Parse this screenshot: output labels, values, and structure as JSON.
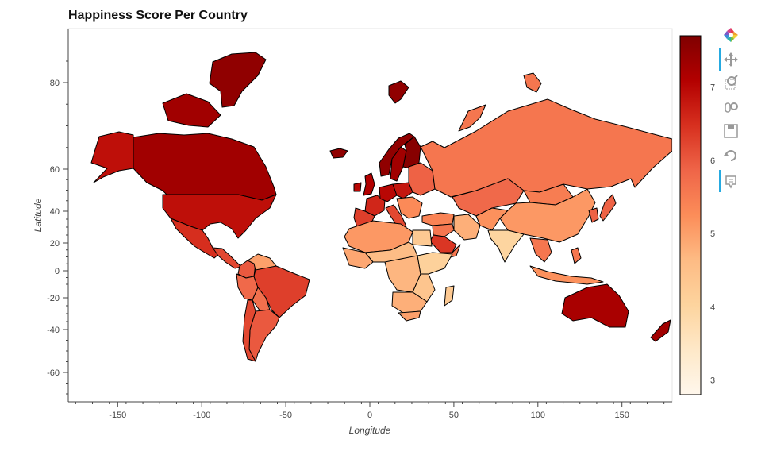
{
  "title": "Happiness Score Per Country",
  "x_axis": {
    "label": "Longitude",
    "range": [
      -180,
      180
    ],
    "ticks": [
      -150,
      -100,
      -50,
      0,
      50,
      100,
      150
    ]
  },
  "y_axis": {
    "label": "Latitude",
    "range": [
      -75,
      91
    ],
    "ticks": [
      80,
      60,
      40,
      20,
      0,
      -20,
      -40,
      -60
    ]
  },
  "colorbar": {
    "palette": "OrRd",
    "range": [
      2.8,
      7.7
    ],
    "ticks": [
      7,
      6,
      5,
      4,
      3
    ],
    "colors": [
      "#fff7ec",
      "#fee8c8",
      "#fdd49e",
      "#fdbb84",
      "#fc8d59",
      "#ef6548",
      "#d7301f",
      "#b30000",
      "#7f0000"
    ]
  },
  "toolbar": {
    "items": [
      "bokeh-logo-icon",
      "pan-icon",
      "box-zoom-icon",
      "wheel-zoom-icon",
      "save-icon",
      "reset-icon",
      "hover-icon"
    ]
  },
  "chart_data": {
    "type": "choropleth",
    "value_name": "Happiness Score",
    "regions": [
      {
        "name": "Canada",
        "value": 7.3
      },
      {
        "name": "Alaska",
        "value": 6.9
      },
      {
        "name": "Greenland",
        "value": 7.5
      },
      {
        "name": "United States",
        "value": 6.9
      },
      {
        "name": "Mexico",
        "value": 6.5
      },
      {
        "name": "Central America",
        "value": 6.2
      },
      {
        "name": "Colombia",
        "value": 6.0
      },
      {
        "name": "Venezuela",
        "value": 5.0
      },
      {
        "name": "Peru",
        "value": 5.8
      },
      {
        "name": "Brazil",
        "value": 6.3
      },
      {
        "name": "Bolivia",
        "value": 5.7
      },
      {
        "name": "Argentina",
        "value": 6.0
      },
      {
        "name": "Chile",
        "value": 6.2
      },
      {
        "name": "Iceland",
        "value": 7.5
      },
      {
        "name": "Norway",
        "value": 7.5
      },
      {
        "name": "Sweden",
        "value": 7.3
      },
      {
        "name": "Finland",
        "value": 7.6
      },
      {
        "name": "United Kingdom",
        "value": 7.1
      },
      {
        "name": "Ireland",
        "value": 7.0
      },
      {
        "name": "France",
        "value": 6.6
      },
      {
        "name": "Spain",
        "value": 6.3
      },
      {
        "name": "Germany",
        "value": 7.0
      },
      {
        "name": "Central Europe",
        "value": 6.8
      },
      {
        "name": "Italy",
        "value": 6.2
      },
      {
        "name": "Eastern Europe",
        "value": 5.9
      },
      {
        "name": "Balkans",
        "value": 5.3
      },
      {
        "name": "Turkey",
        "value": 5.4
      },
      {
        "name": "Russia",
        "value": 5.6
      },
      {
        "name": "Kazakhstan",
        "value": 5.8
      },
      {
        "name": "Mongolia",
        "value": 5.5
      },
      {
        "name": "China",
        "value": 5.1
      },
      {
        "name": "Korea",
        "value": 5.9
      },
      {
        "name": "Japan",
        "value": 5.9
      },
      {
        "name": "Iran",
        "value": 4.8
      },
      {
        "name": "Saudi Arabia",
        "value": 6.4
      },
      {
        "name": "Middle East",
        "value": 5.6
      },
      {
        "name": "Central Asia",
        "value": 5.2
      },
      {
        "name": "India",
        "value": 4.0
      },
      {
        "name": "Southeast Asia",
        "value": 5.6
      },
      {
        "name": "Indonesia",
        "value": 5.2
      },
      {
        "name": "Philippines",
        "value": 5.6
      },
      {
        "name": "Australia",
        "value": 7.2
      },
      {
        "name": "New Zealand",
        "value": 7.3
      },
      {
        "name": "North Africa",
        "value": 5.1
      },
      {
        "name": "Egypt",
        "value": 4.3
      },
      {
        "name": "Sahel",
        "value": 4.6
      },
      {
        "name": "West Africa",
        "value": 4.9
      },
      {
        "name": "Central Africa",
        "value": 4.7
      },
      {
        "name": "East Africa",
        "value": 4.4
      },
      {
        "name": "Ethiopia Somalia",
        "value": 4.1
      },
      {
        "name": "Southern Africa",
        "value": 4.8
      },
      {
        "name": "South Africa",
        "value": 5.0
      },
      {
        "name": "Madagascar",
        "value": 4.3
      }
    ]
  }
}
